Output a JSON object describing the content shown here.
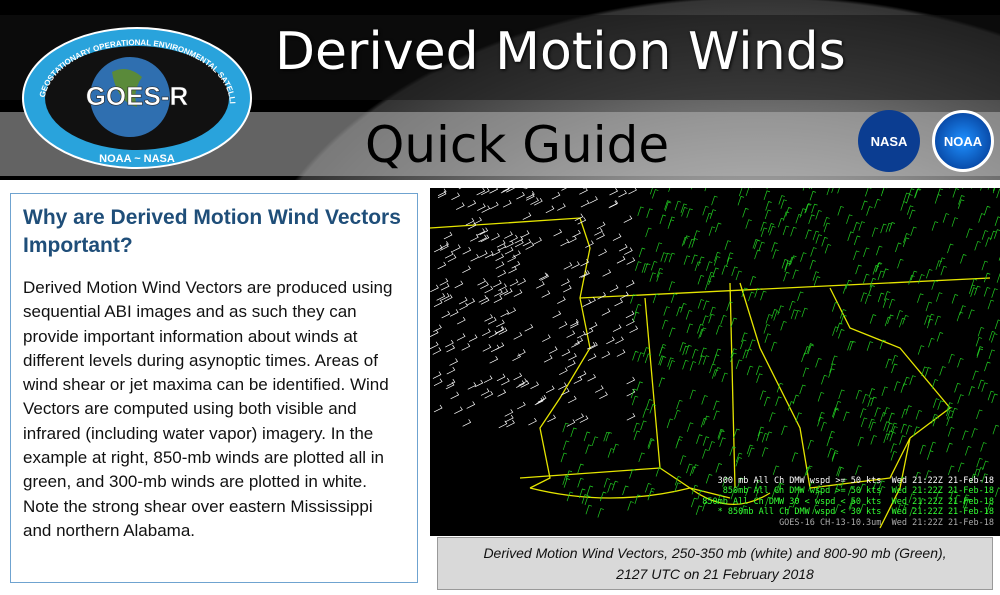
{
  "header": {
    "title": "Derived Motion Winds",
    "subtitle": "Quick Guide",
    "logo": {
      "ring_text": "GEOSTATIONARY OPERATIONAL ENVIRONMENTAL SATELLITE-R SERIES",
      "center": "GOES-R",
      "bottom": "NOAA ~ NASA"
    },
    "agencies": [
      "NASA",
      "NOAA"
    ]
  },
  "left_panel": {
    "heading": "Why are Derived Motion Wind Vectors Important?",
    "body": "Derived Motion Wind Vectors are produced using sequential ABI images and as such they can provide important information about winds at different levels during asynoptic times.  Areas of wind shear or jet maxima can be identified.  Wind Vectors are computed using both visible and infrared (including water vapor) imagery.  In the example at right, 850-mb winds are plotted all in green, and 300-mb winds are plotted in white.  Note the strong shear over eastern Mississippi and northern Alabama."
  },
  "map": {
    "legend": [
      {
        "text": "300 mb All Ch DMW wspd >= 50 kts  Wed 21:22Z 21-Feb-18",
        "color": "#ffffff"
      },
      {
        "text": "850mb All Ch DMW wspd >= 50 kts  Wed 21:22Z 21-Feb-18",
        "color": "#33ff33"
      },
      {
        "text": "850mb All Ch DMW 30 < wspd < 50 kts  Wed 21:22Z 21-Feb-18",
        "color": "#33ff33"
      },
      {
        "text": "* 850mb All Ch DMW wspd < 30 kts  Wed 21:22Z 21-Feb-18",
        "color": "#33ff33"
      },
      {
        "text": "GOES-16 CH-13-10.3um  Wed 21:22Z 21-Feb-18",
        "color": "#aaaaaa"
      }
    ],
    "colors": {
      "upper": "#ffffff",
      "lower": "#22cc22",
      "borders": "#e5e500"
    }
  },
  "caption": {
    "line1": "Derived Motion Wind Vectors, 250-350 mb (white) and 800-90 mb (Green),",
    "line2": "2127 UTC on 21 February 2018"
  }
}
